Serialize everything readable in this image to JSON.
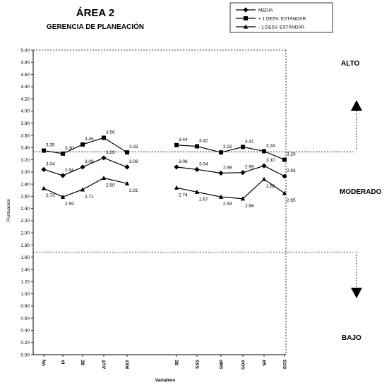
{
  "chart_data": {
    "type": "line",
    "title": "ÁREA 2",
    "subtitle": "GERENCIA DE PLANEACIÓN",
    "xlabel": "Variables",
    "ylabel": "Puntuación",
    "ylim": [
      0,
      5
    ],
    "yticks": [
      "0.00",
      "0.20",
      "0.40",
      "0.60",
      "0.80",
      "1.00",
      "1.20",
      "1.40",
      "1.60",
      "1.80",
      "2.00",
      "2.20",
      "2.40",
      "2.60",
      "2.80",
      "3.00",
      "3.20",
      "3.40",
      "3.60",
      "3.80",
      "4.00",
      "4.20",
      "4.40",
      "4.60",
      "4.80",
      "5.00"
    ],
    "groups": [
      {
        "categories": [
          "VN",
          "IA",
          "SE",
          "AUT",
          "RET"
        ]
      },
      {
        "categories": [
          "SE",
          "SSS",
          "SNP",
          "SOA",
          "SR",
          "SCS"
        ]
      }
    ],
    "series": [
      {
        "name": "MEDIA",
        "marker": "diamond",
        "values": [
          [
            3.04,
            2.94,
            3.08,
            3.23,
            3.08
          ],
          [
            3.08,
            3.04,
            2.98,
            2.99,
            3.1,
            2.93
          ]
        ],
        "labels": [
          [
            "3.04",
            "2.94",
            "3.08",
            "3.23",
            "3.08"
          ],
          [
            "3.08",
            "3.04",
            "2.98",
            "2.99",
            "3.10",
            "2.93"
          ]
        ]
      },
      {
        "name": "+ 1 DESV. ESTÁNDAR",
        "marker": "square",
        "values": [
          [
            3.35,
            3.3,
            3.45,
            3.56,
            3.32
          ],
          [
            3.44,
            3.42,
            3.32,
            3.41,
            3.34,
            3.2
          ]
        ],
        "labels": [
          [
            "3.35",
            "3.30",
            "3.45",
            "3.56",
            "3.32"
          ],
          [
            "3.44",
            "3.42",
            "3.32",
            "3.41",
            "3.34",
            "3.20"
          ]
        ]
      },
      {
        "name": "- 1 DESV. ESTÁNDAR",
        "marker": "triangle",
        "values": [
          [
            2.73,
            2.59,
            2.71,
            2.9,
            2.81
          ],
          [
            2.74,
            2.67,
            2.59,
            2.56,
            2.88,
            2.65
          ]
        ],
        "labels": [
          [
            "2.73",
            "2.59",
            "2.71",
            "2.90",
            "2.81"
          ],
          [
            "2.74",
            "2.67",
            "2.59",
            "2.56",
            "2.88",
            "2.65"
          ]
        ]
      }
    ],
    "thresholds": [
      3.33,
      1.68
    ],
    "zones": [
      "ALTO",
      "MODERADO",
      "BAJO"
    ],
    "legend_position": "top-right",
    "grid": false
  }
}
